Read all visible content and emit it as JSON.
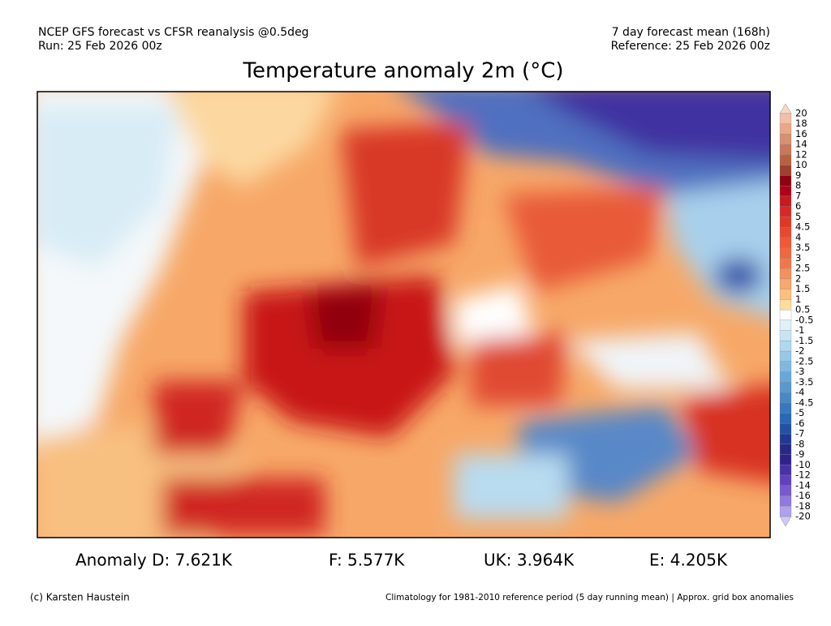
{
  "header": {
    "left": [
      "NCEP GFS forecast vs CFSR reanalysis @0.5deg",
      "Run: 25 Feb 2026 00z"
    ],
    "right": [
      "7 day forecast mean (168h)",
      "Reference: 25 Feb 2026 00z"
    ]
  },
  "title": "Temperature anomaly 2m (°C)",
  "colorbar": {
    "levels": [
      20,
      18,
      16,
      14,
      12,
      10,
      9,
      8,
      7,
      6,
      5,
      4.5,
      4,
      3.5,
      3,
      2.5,
      2,
      1.5,
      1,
      0.5,
      -0.5,
      -1,
      -1.5,
      -2,
      -2.5,
      -3,
      -3.5,
      -4,
      -4.5,
      -5,
      -6,
      -7,
      -8,
      -9,
      -10,
      -12,
      -14,
      -16,
      -18,
      -20
    ]
  },
  "stats": [
    "Anomaly D: 7.621K",
    "F: 5.577K",
    "UK: 3.964K",
    "E: 4.205K"
  ],
  "footer": {
    "left": "(c) Karsten Haustein",
    "right": "Climatology for 1981-2010 reference period (5 day running mean) | Approx. grid box anomalies"
  }
}
